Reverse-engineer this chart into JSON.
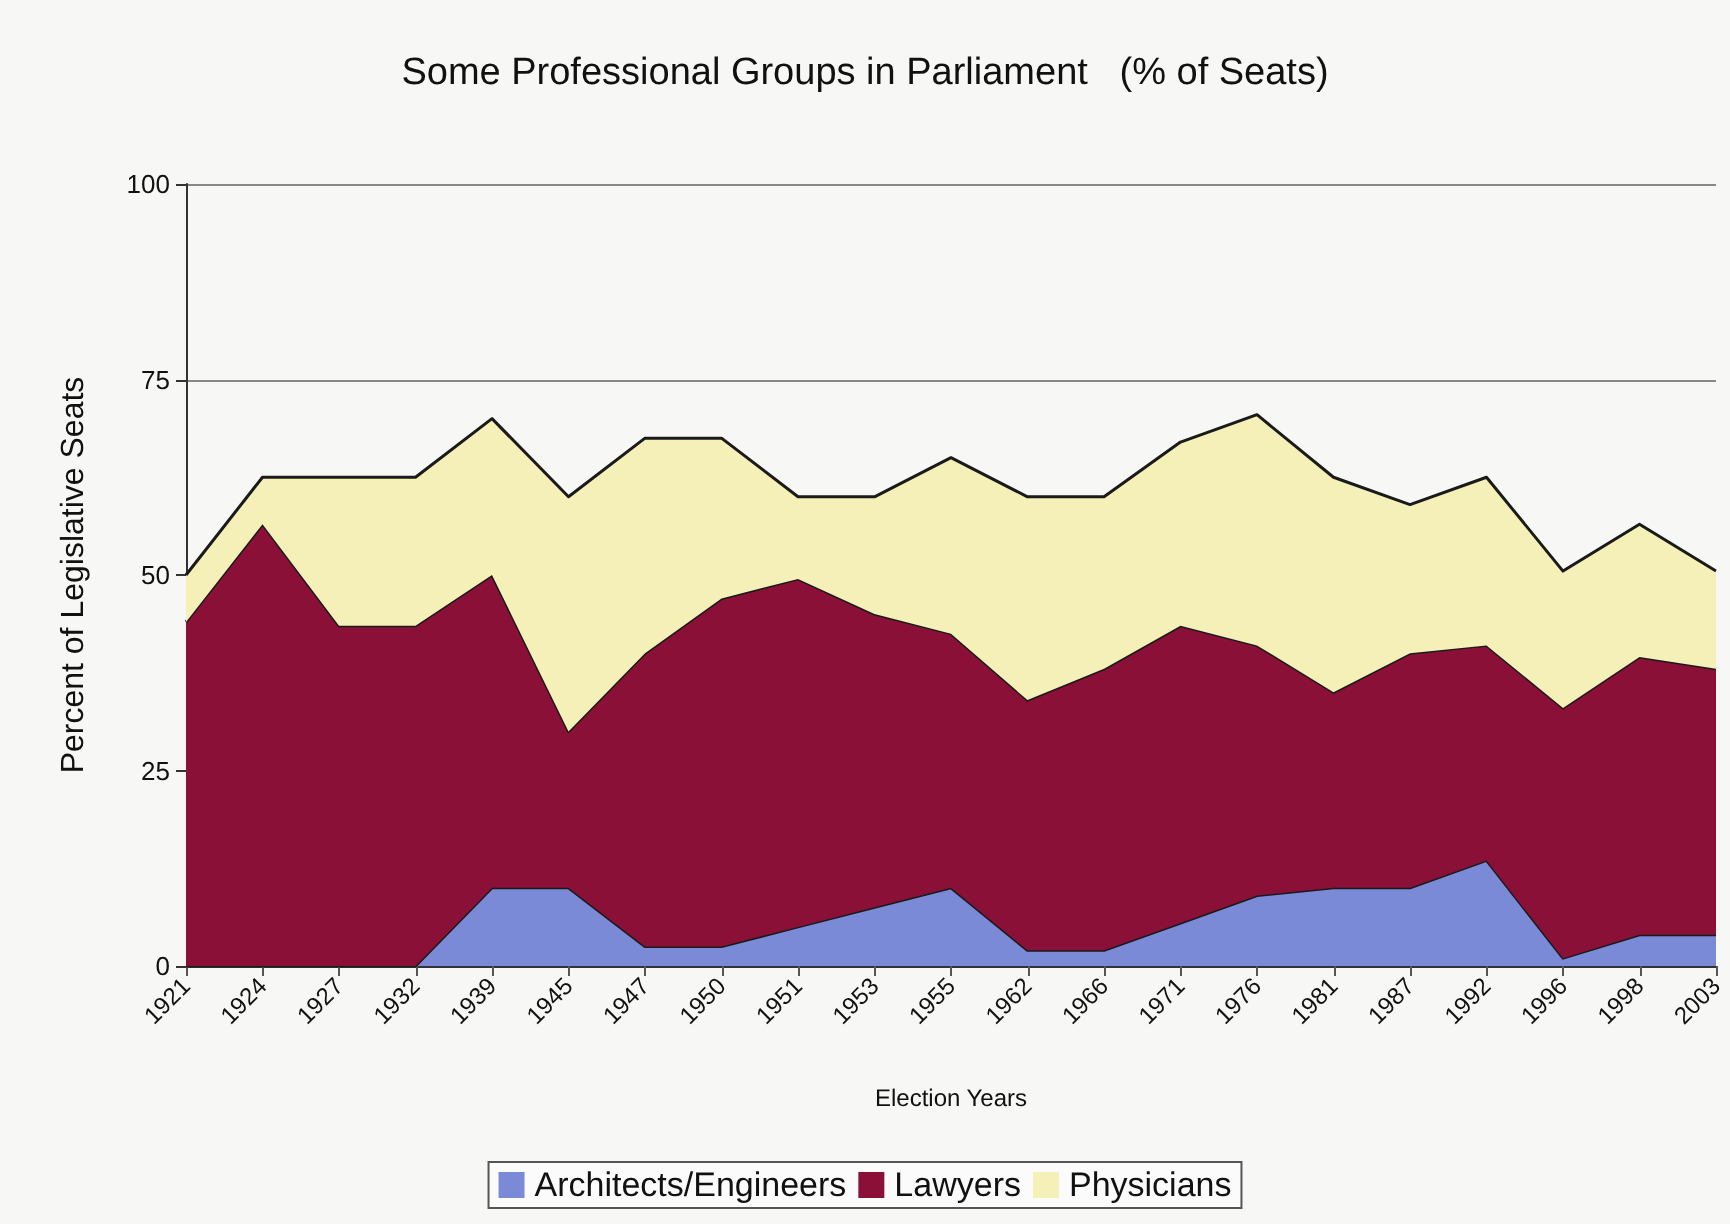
{
  "chart_data": {
    "type": "area",
    "stacked": true,
    "title": "Some Professional Groups in Parliament   (% of Seats)",
    "xlabel": "Election Years",
    "ylabel": "Percent of Legislative Seats",
    "categories": [
      "1921",
      "1924",
      "1927",
      "1932",
      "1939",
      "1945",
      "1947",
      "1950",
      "1951",
      "1953",
      "1955",
      "1962",
      "1966",
      "1971",
      "1976",
      "1981",
      "1987",
      "1992",
      "1996",
      "1998",
      "2003"
    ],
    "series": [
      {
        "name": "Architects/Engineers",
        "color": "#7b8ad6",
        "values": [
          0,
          0,
          0,
          0,
          10,
          10,
          2.5,
          2.5,
          5,
          7.5,
          10,
          2,
          2,
          5.5,
          9,
          10,
          10,
          13.5,
          1,
          4,
          4
        ]
      },
      {
        "name": "Lawyers",
        "color": "#8b1038",
        "values": [
          44,
          56.5,
          43.5,
          43.5,
          40,
          20,
          37.5,
          44.5,
          44.5,
          37.5,
          32.5,
          32,
          36,
          38,
          32,
          25,
          30,
          27.5,
          32,
          35.5,
          34
        ]
      },
      {
        "name": "Physicians",
        "color": "#f5f0b8",
        "values": [
          6,
          6,
          19,
          19,
          20,
          30,
          27.5,
          20.5,
          10.5,
          15,
          22.5,
          26,
          22,
          23.5,
          29.5,
          27.5,
          19,
          21.5,
          17.5,
          17,
          12.5
        ]
      }
    ],
    "ylim": [
      0,
      100
    ],
    "yticks": [
      0,
      25,
      50,
      75,
      100
    ],
    "grid": "y",
    "legend": "bottom"
  }
}
